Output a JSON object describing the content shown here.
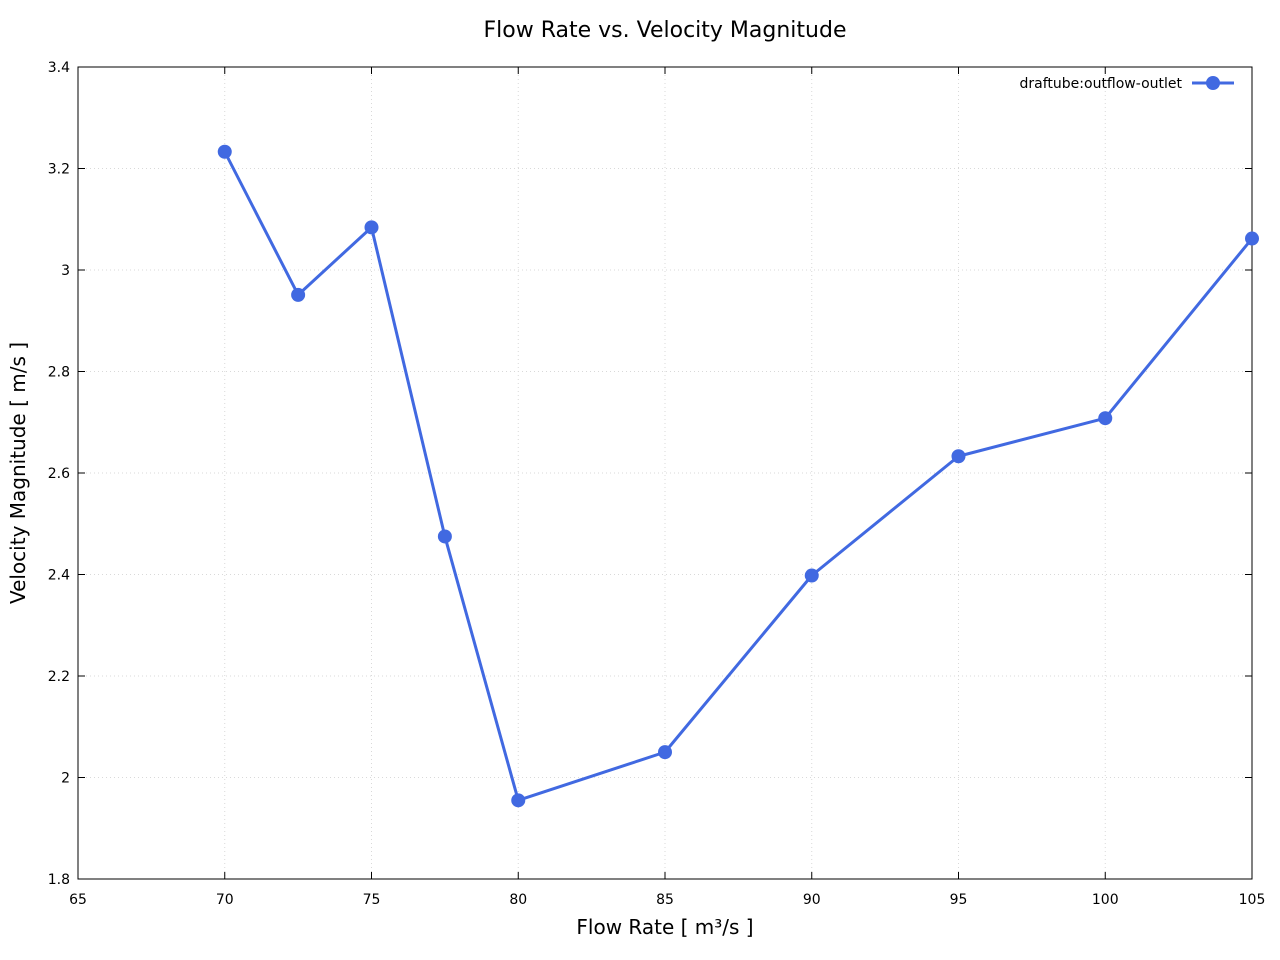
{
  "chart_data": {
    "type": "line",
    "title": "Flow Rate vs. Velocity Magnitude",
    "xlabel": "Flow Rate [ m³/s ]",
    "ylabel": "Velocity Magnitude [ m/s ]",
    "xlim": [
      65,
      105
    ],
    "ylim": [
      1.8,
      3.4
    ],
    "xticks": [
      "65",
      "70",
      "75",
      "80",
      "85",
      "90",
      "95",
      "100",
      "105"
    ],
    "yticks": [
      "1.8",
      "2",
      "2.2",
      "2.4",
      "2.6",
      "2.8",
      "3",
      "3.2",
      "3.4"
    ],
    "grid": true,
    "legend_position": "top-right",
    "series": [
      {
        "name": "draftube:outflow-outlet",
        "color": "#4169e1",
        "x": [
          70,
          72.5,
          75,
          77.5,
          80,
          85,
          90,
          95,
          100,
          105
        ],
        "y": [
          3.233,
          2.951,
          3.084,
          2.475,
          1.955,
          2.05,
          2.398,
          2.633,
          2.708,
          3.062
        ]
      }
    ]
  }
}
